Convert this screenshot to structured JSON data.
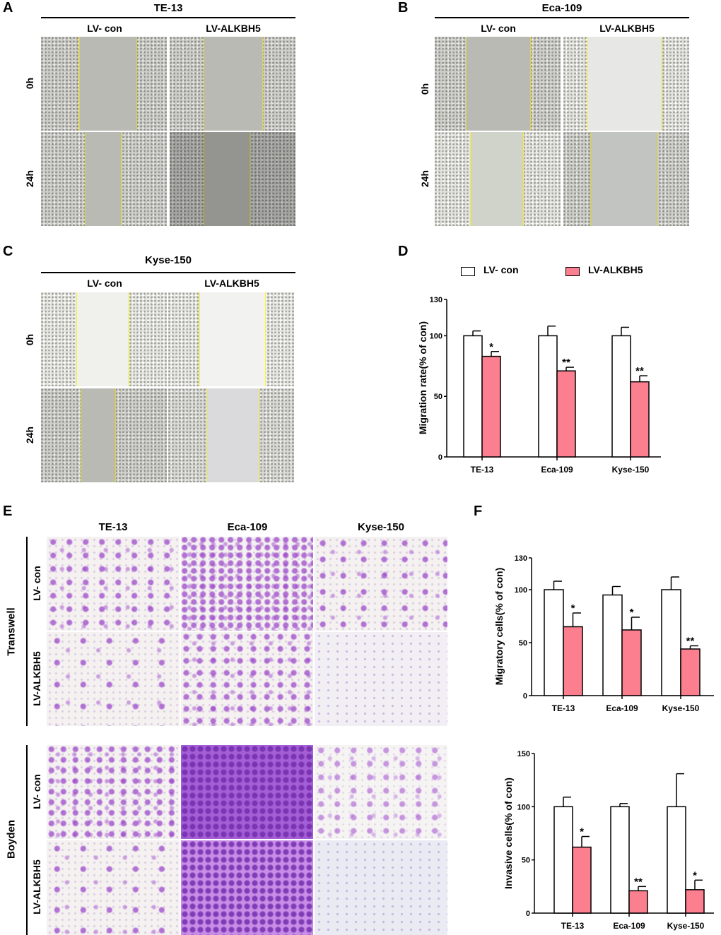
{
  "panels": {
    "A": {
      "letter": "A",
      "title": "TE-13",
      "columns": [
        "LV- con",
        "LV-ALKBH5"
      ],
      "rows": [
        "0h",
        "24h"
      ]
    },
    "B": {
      "letter": "B",
      "title": "Eca-109",
      "columns": [
        "LV- con",
        "LV-ALKBH5"
      ],
      "rows": [
        "0h",
        "24h"
      ]
    },
    "C": {
      "letter": "C",
      "title": "Kyse-150",
      "columns": [
        "LV- con",
        "LV-ALKBH5"
      ],
      "rows": [
        "0h",
        "24h"
      ]
    },
    "D": {
      "letter": "D"
    },
    "E": {
      "letter": "E",
      "columns": [
        "TE-13",
        "Eca-109",
        "Kyse-150"
      ],
      "groups": [
        {
          "label": "Transwell",
          "rows": [
            "LV- con",
            "LV-ALKBH5"
          ]
        },
        {
          "label": "Boyden",
          "rows": [
            "LV- con",
            "LV-ALKBH5"
          ]
        }
      ]
    },
    "F": {
      "letter": "F"
    }
  },
  "legend": {
    "items": [
      "LV- con",
      "LV-ALKBH5"
    ]
  },
  "colors": {
    "con": "#ffffff",
    "alkbh5": "#fc7f8f",
    "wound_edge": "#e2d632"
  },
  "chart_data": [
    {
      "type": "bar",
      "panel": "D",
      "title": "",
      "xlabel": "",
      "ylabel": "Migration rate(% of con)",
      "ylim": [
        0,
        130
      ],
      "yticks": [
        "0",
        "50",
        "100",
        "130"
      ],
      "categories": [
        "TE-13",
        "Eca-109",
        "Kyse-150"
      ],
      "series": [
        {
          "name": "LV- con",
          "values": [
            100,
            100,
            100
          ],
          "errors": [
            4,
            8,
            7
          ]
        },
        {
          "name": "LV-ALKBH5",
          "values": [
            83,
            71,
            62
          ],
          "errors": [
            4,
            3,
            5
          ],
          "annotations": [
            "*",
            "**",
            "**"
          ]
        }
      ],
      "legend": "top"
    },
    {
      "type": "bar",
      "panel": "F-top",
      "title": "",
      "xlabel": "",
      "ylabel": "Migratory cells(% of con)",
      "ylim": [
        0,
        130
      ],
      "yticks": [
        "0",
        "50",
        "100",
        "130"
      ],
      "categories": [
        "TE-13",
        "Eca-109",
        "Kyse-150"
      ],
      "series": [
        {
          "name": "LV- con",
          "values": [
            100,
            95,
            100
          ],
          "errors": [
            8,
            8,
            12
          ]
        },
        {
          "name": "LV-ALKBH5",
          "values": [
            65,
            62,
            44
          ],
          "errors": [
            13,
            12,
            3
          ],
          "annotations": [
            "*",
            "*",
            "**"
          ]
        }
      ]
    },
    {
      "type": "bar",
      "panel": "F-bottom",
      "title": "",
      "xlabel": "",
      "ylabel": "Invasive cells(% of con)",
      "ylim": [
        0,
        150
      ],
      "yticks": [
        "0",
        "50",
        "100",
        "150"
      ],
      "categories": [
        "TE-13",
        "Eca-109",
        "Kyse-150"
      ],
      "series": [
        {
          "name": "LV- con",
          "values": [
            100,
            100,
            100
          ],
          "errors": [
            9,
            3,
            31
          ]
        },
        {
          "name": "LV-ALKBH5",
          "values": [
            62,
            21,
            22
          ],
          "errors": [
            10,
            4,
            9
          ],
          "annotations": [
            "*",
            "**",
            "*"
          ]
        }
      ]
    }
  ]
}
